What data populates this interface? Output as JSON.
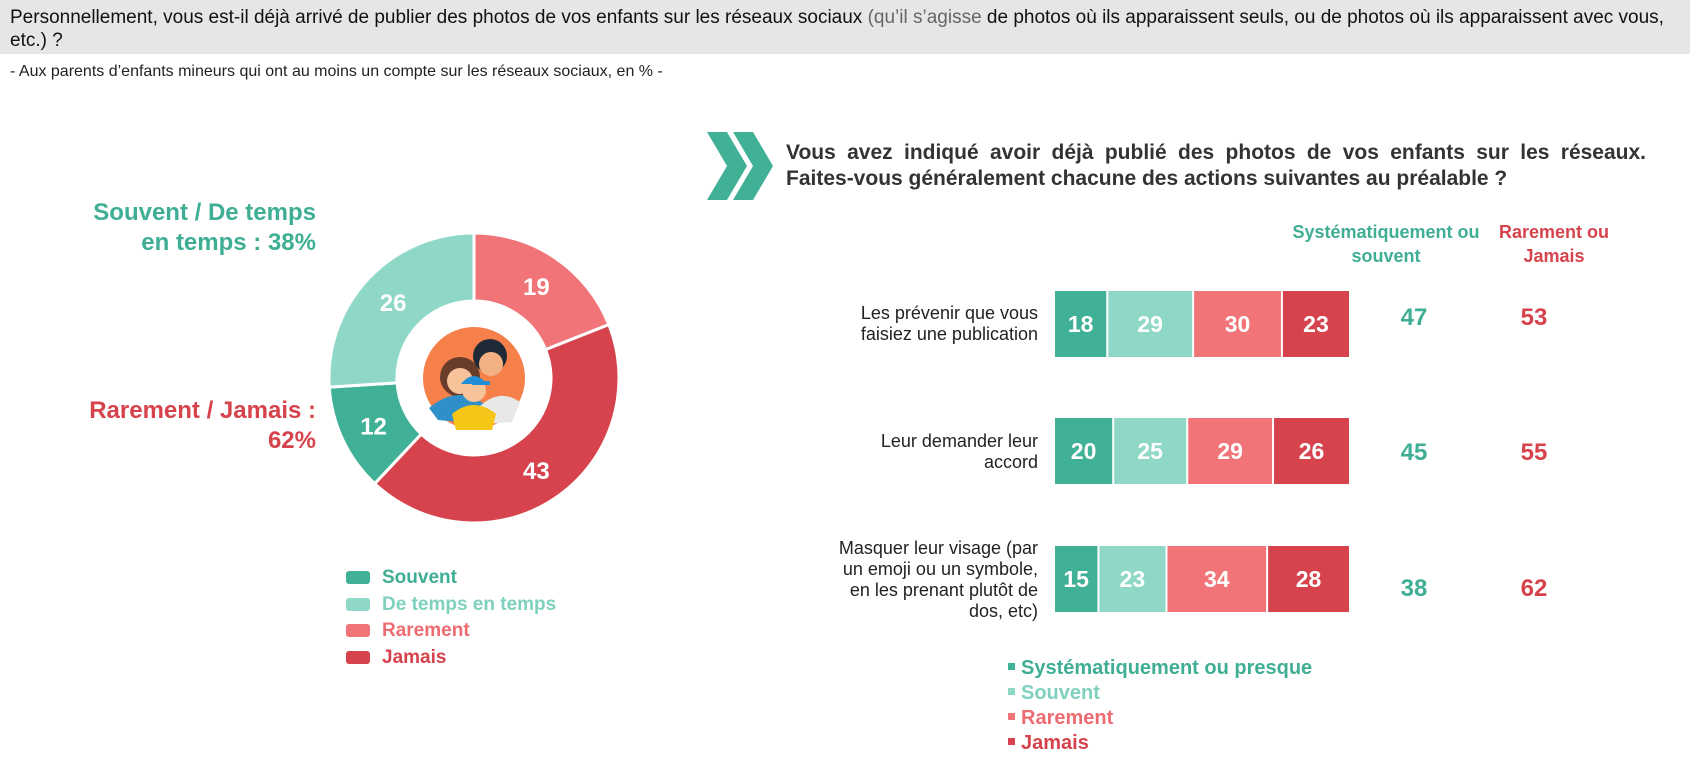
{
  "header": {
    "question_part1": "Personnellement, vous est-il déjà arrivé de publier des photos de vos enfants sur les réseaux sociaux ",
    "question_muted": "(qu’il s’agisse",
    "question_part2": " de photos où ils apparaissent seuls, ou de photos où ils apparaissent avec vous, etc.) ?",
    "subtitle": "- Aux parents d’enfants mineurs qui ont au moins un compte sur les réseaux sociaux, en % -"
  },
  "colors": {
    "souvent": "#40b196",
    "de_temps": "#8fd8c7",
    "rarement": "#f07478",
    "jamais": "#d6434c",
    "teal_text": "#3fae94",
    "red_text": "#d6434c",
    "light_teal_text": "#7fd1bd",
    "light_red_text": "#ef6b72"
  },
  "donut": {
    "summary_positive": "Souvent / De temps en temps : 38%",
    "summary_negative": "Rarement / Jamais : 62%",
    "center_icon": "family-photo-icon"
  },
  "chart_data": [
    {
      "type": "pie",
      "subtype": "donut",
      "categories": [
        "Souvent",
        "De temps en temps",
        "Rarement",
        "Jamais"
      ],
      "values": [
        12,
        26,
        19,
        43
      ],
      "legend": [
        "Souvent",
        "De temps en temps",
        "Rarement",
        "Jamais"
      ],
      "legend_position": "bottom"
    },
    {
      "type": "bar",
      "orientation": "horizontal",
      "stacked": true,
      "title": "Vous avez indiqué avoir déjà publié des photos de vos enfants sur les réseaux. Faites-vous généralement chacune des actions suivantes au préalable ?",
      "categories": [
        "Les prévenir que vous faisiez une publication",
        "Leur demander leur accord",
        "Masquer leur visage (par un emoji ou un symbole, en les prenant plutôt de dos, etc)"
      ],
      "series": [
        {
          "name": "Systématiquement ou presque",
          "values": [
            18,
            20,
            15
          ]
        },
        {
          "name": "Souvent",
          "values": [
            29,
            25,
            23
          ]
        },
        {
          "name": "Rarement",
          "values": [
            30,
            29,
            34
          ]
        },
        {
          "name": "Jamais",
          "values": [
            23,
            26,
            28
          ]
        }
      ],
      "summary_columns": [
        {
          "header": "Systématiquement ou souvent",
          "values": [
            47,
            45,
            38
          ]
        },
        {
          "header": "Rarement ou Jamais",
          "values": [
            53,
            55,
            62
          ]
        }
      ],
      "legend_position": "bottom"
    }
  ]
}
